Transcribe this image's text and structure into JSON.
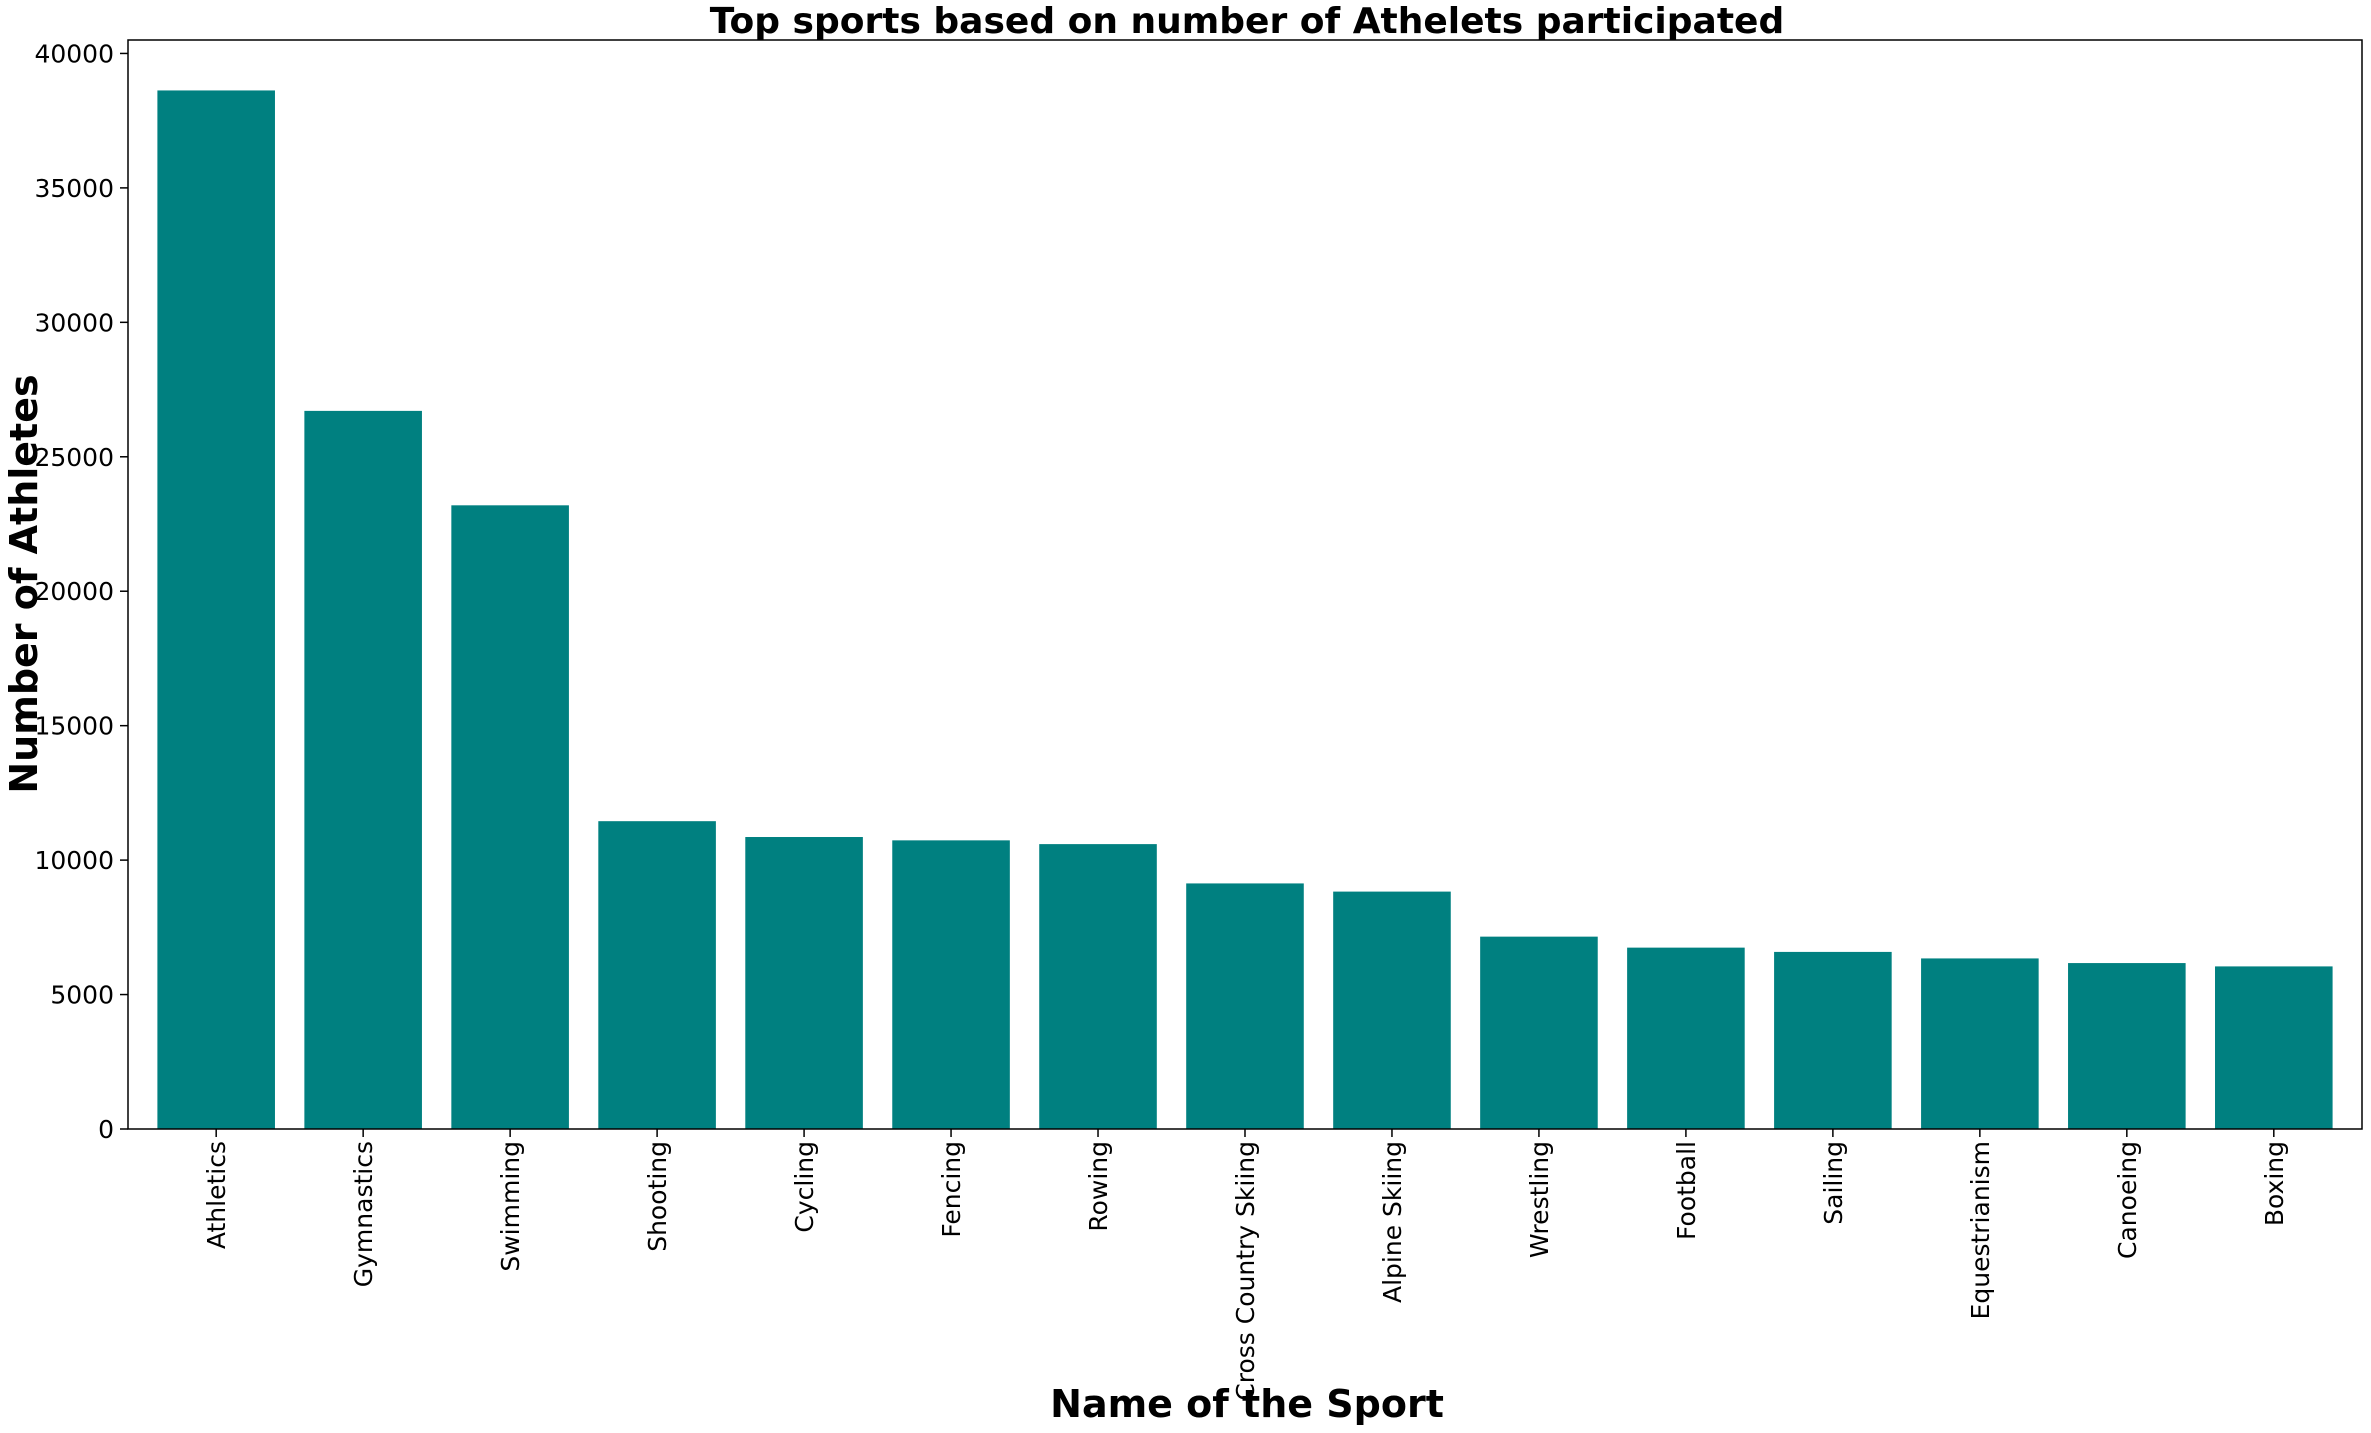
{
  "chart_data": {
    "type": "bar",
    "title": "Top sports based on number of Athelets participated",
    "xlabel": "Name of the Sport",
    "ylabel": "Number of Athletes",
    "categories": [
      "Athletics",
      "Gymnastics",
      "Swimming",
      "Shooting",
      "Cycling",
      "Fencing",
      "Rowing",
      "Cross Country Skiing",
      "Alpine Skiing",
      "Wrestling",
      "Football",
      "Sailing",
      "Equestrianism",
      "Canoeing",
      "Boxing"
    ],
    "values": [
      38624,
      26707,
      23195,
      11448,
      10859,
      10735,
      10595,
      9133,
      8829,
      7154,
      6745,
      6586,
      6344,
      6171,
      6047
    ],
    "ylim": [
      0,
      40500
    ],
    "yticks": [
      0,
      5000,
      10000,
      15000,
      20000,
      25000,
      30000,
      35000,
      40000
    ],
    "bar_color": "#008080",
    "grid": false,
    "legend": "none"
  }
}
